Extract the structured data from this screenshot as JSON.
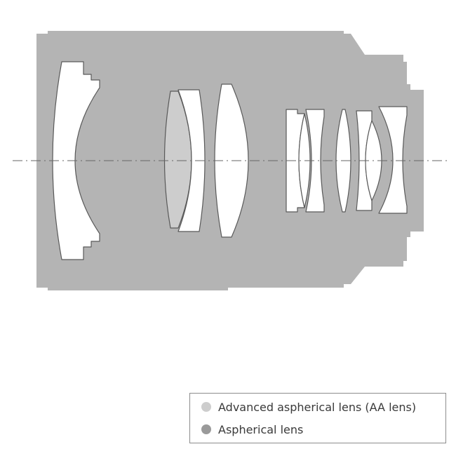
{
  "colors": {
    "barrel": "#b4b4b4",
    "element_fill": "#ffffff",
    "element_stroke": "#595959",
    "aa_lens": "#cdcdcd",
    "aspherical": "#9a9a9a",
    "optical_axis": "#666666",
    "legend_border": "#8c8c8c",
    "legend_text": "#3a3a3a"
  },
  "diagram": {
    "elements": [
      {
        "name": "lens-element-1",
        "type": "standard"
      },
      {
        "name": "lens-element-2",
        "type": "aa"
      },
      {
        "name": "lens-element-3",
        "type": "standard"
      },
      {
        "name": "lens-element-4",
        "type": "standard"
      },
      {
        "name": "lens-element-5",
        "type": "standard"
      },
      {
        "name": "lens-element-6",
        "type": "standard"
      },
      {
        "name": "lens-element-7",
        "type": "standard"
      },
      {
        "name": "lens-element-8",
        "type": "standard"
      },
      {
        "name": "lens-element-9",
        "type": "standard"
      },
      {
        "name": "lens-element-10",
        "type": "standard"
      },
      {
        "name": "lens-element-11",
        "type": "standard"
      }
    ]
  },
  "legend": {
    "items": [
      {
        "label": "Advanced aspherical lens (AA lens)",
        "swatch": "#cdcdcd"
      },
      {
        "label": "Aspherical lens",
        "swatch": "#9a9a9a"
      }
    ]
  }
}
